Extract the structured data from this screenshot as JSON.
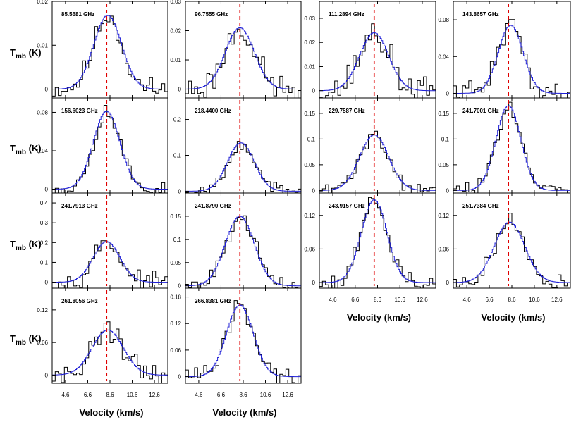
{
  "chart_data": {
    "type": "line",
    "ylabel_main": "T",
    "ylabel_sub": "mb",
    "ylabel_unit": " (K)",
    "xlabel": "Velocity (km/s)",
    "xlim": [
      3.4,
      13.8
    ],
    "xticks": [
      "4.6",
      "6.6",
      "8.6",
      "10.6",
      "12.6"
    ],
    "xtick_values": [
      4.6,
      6.6,
      8.6,
      10.6,
      12.6
    ],
    "vsys": 8.3,
    "colors": {
      "observed": "#000000",
      "fit": "#1f1fd6",
      "vsys": "#e00000"
    },
    "panels": [
      {
        "label": "85.5681 GHz",
        "ylim": [
          -0.002,
          0.02
        ],
        "yticks": [
          0,
          0.01,
          0.02
        ],
        "ytick_labels": [
          "0",
          "0.01",
          "0.02"
        ],
        "peak": 0.0168,
        "center": 8.4,
        "width": 1.25,
        "noise": 0.0018,
        "seed": 11
      },
      {
        "label": "96.7555 GHz",
        "ylim": [
          -0.003,
          0.03
        ],
        "yticks": [
          0,
          0.01,
          0.02,
          0.03
        ],
        "ytick_labels": [
          "0",
          "0.01",
          "0.02",
          "0.03"
        ],
        "peak": 0.021,
        "center": 8.3,
        "width": 1.3,
        "noise": 0.0035,
        "seed": 23
      },
      {
        "label": "111.2894 GHz",
        "ylim": [
          -0.003,
          0.037
        ],
        "yticks": [
          0,
          0.01,
          0.02,
          0.03
        ],
        "ytick_labels": [
          "0",
          "0.01",
          "0.02",
          "0.03"
        ],
        "peak": 0.024,
        "center": 8.3,
        "width": 1.3,
        "noise": 0.0045,
        "seed": 37
      },
      {
        "label": "143.8657 GHz",
        "ylim": [
          -0.005,
          0.1
        ],
        "yticks": [
          0,
          0.04,
          0.08
        ],
        "ytick_labels": [
          "0",
          "0.04",
          "0.08"
        ],
        "peak": 0.074,
        "center": 8.5,
        "width": 1.1,
        "noise": 0.009,
        "seed": 41
      },
      {
        "label": "156.6023 GHz",
        "ylim": [
          -0.004,
          0.095
        ],
        "yticks": [
          0,
          0.04,
          0.08
        ],
        "ytick_labels": [
          "0",
          "0.04",
          "0.08"
        ],
        "peak": 0.081,
        "center": 8.3,
        "width": 1.2,
        "noise": 0.007,
        "seed": 53
      },
      {
        "label": "218.4400 GHz",
        "ylim": [
          -0.005,
          0.26
        ],
        "yticks": [
          0,
          0.1,
          0.2
        ],
        "ytick_labels": [
          "0",
          "0.1",
          "0.2"
        ],
        "peak": 0.135,
        "center": 8.4,
        "width": 1.2,
        "noise": 0.012,
        "seed": 67
      },
      {
        "label": "229.7587 GHz",
        "ylim": [
          -0.005,
          0.18
        ],
        "yticks": [
          0,
          0.05,
          0.1,
          0.15
        ],
        "ytick_labels": [
          "0",
          "0.05",
          "0.1",
          "0.15"
        ],
        "peak": 0.108,
        "center": 8.3,
        "width": 1.3,
        "noise": 0.01,
        "seed": 71
      },
      {
        "label": "241.7001 GHz",
        "ylim": [
          -0.005,
          0.18
        ],
        "yticks": [
          0,
          0.05,
          0.1,
          0.15
        ],
        "ytick_labels": [
          "0",
          "0.05",
          "0.1",
          "0.15"
        ],
        "peak": 0.165,
        "center": 8.3,
        "width": 1.1,
        "noise": 0.01,
        "seed": 83
      },
      {
        "label": "241.7913 GHz",
        "ylim": [
          -0.03,
          0.45
        ],
        "yticks": [
          0,
          0.1,
          0.2,
          0.3,
          0.4
        ],
        "ytick_labels": [
          "0",
          "0.1",
          "0.2",
          "0.3",
          "0.4"
        ],
        "peak": 0.205,
        "center": 8.3,
        "width": 1.2,
        "noise": 0.03,
        "seed": 97
      },
      {
        "label": "241.8790 GHz",
        "ylim": [
          -0.005,
          0.2
        ],
        "yticks": [
          0,
          0.05,
          0.1,
          0.15
        ],
        "ytick_labels": [
          "0",
          "0.05",
          "0.1",
          "0.15"
        ],
        "peak": 0.15,
        "center": 8.3,
        "width": 1.3,
        "noise": 0.012,
        "seed": 101
      },
      {
        "label": "243.9157 GHz",
        "ylim": [
          -0.01,
          0.16
        ],
        "yticks": [
          0,
          0.06,
          0.12
        ],
        "ytick_labels": [
          "0",
          "0.06",
          "0.12"
        ],
        "peak": 0.148,
        "center": 8.3,
        "width": 1.15,
        "noise": 0.01,
        "seed": 113
      },
      {
        "label": "251.7384 GHz",
        "ylim": [
          -0.01,
          0.16
        ],
        "yticks": [
          0,
          0.06,
          0.12
        ],
        "ytick_labels": [
          "0",
          "0.06",
          "0.12"
        ],
        "peak": 0.108,
        "center": 8.4,
        "width": 1.35,
        "noise": 0.011,
        "seed": 127
      },
      {
        "label": "261.8056 GHz",
        "ylim": [
          -0.015,
          0.16
        ],
        "yticks": [
          0,
          0.06,
          0.12
        ],
        "ytick_labels": [
          "0",
          "0.06",
          "0.12"
        ],
        "peak": 0.083,
        "center": 8.4,
        "width": 1.4,
        "noise": 0.015,
        "seed": 131
      },
      {
        "label": "266.8381 GHz",
        "ylim": [
          -0.015,
          0.2
        ],
        "yticks": [
          0,
          0.06,
          0.12,
          0.18
        ],
        "ytick_labels": [
          "0",
          "0.06",
          "0.12",
          "0.18"
        ],
        "peak": 0.162,
        "center": 8.3,
        "width": 1.2,
        "noise": 0.016,
        "seed": 139
      }
    ]
  }
}
